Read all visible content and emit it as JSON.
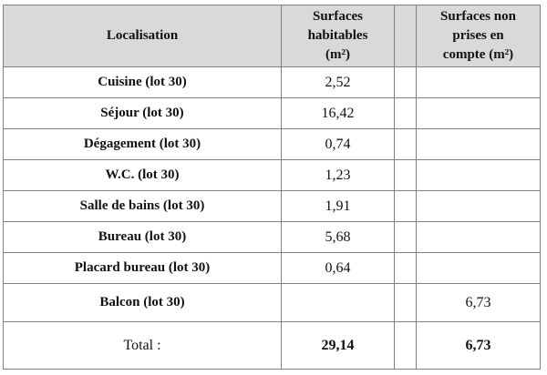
{
  "table": {
    "header": [
      [
        "Localisation"
      ],
      [
        "Surfaces",
        "habitables",
        "(m²)"
      ],
      [
        "Surfaces non",
        "prises en",
        "compte (m²)"
      ]
    ],
    "rows": [
      [
        "Cuisine (lot 30)",
        "2,52",
        null
      ],
      [
        "Séjour (lot 30)",
        "16,42",
        null
      ],
      [
        "Dégagement (lot 30)",
        "0,74",
        null
      ],
      [
        "W.C. (lot 30)",
        "1,23",
        null
      ],
      [
        "Salle de bains (lot 30)",
        "1,91",
        null
      ],
      [
        "Bureau (lot 30)",
        "5,68",
        null
      ],
      [
        "Placard bureau (lot 30)",
        "0,64",
        null
      ],
      [
        "Balcon (lot 30)",
        null,
        "6,73"
      ],
      [
        "Total :",
        "29,14",
        "6,73"
      ]
    ]
  }
}
